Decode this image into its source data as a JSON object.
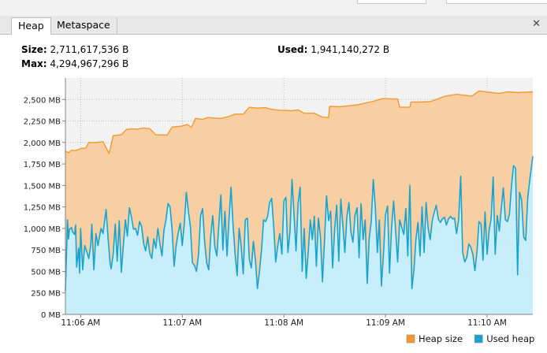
{
  "tabs": [
    {
      "label": "Heap",
      "active": true
    },
    {
      "label": "Metaspace",
      "active": false
    }
  ],
  "stats": {
    "size_label": "Size:",
    "size_value": "2,711,617,536 B",
    "max_label": "Max:",
    "max_value": "4,294,967,296 B",
    "used_label": "Used:",
    "used_value": "1,941,140,272 B"
  },
  "chart_data": {
    "type": "area",
    "y_unit": "MB",
    "ylim": [
      0,
      2750
    ],
    "y_ticks": [
      "0 MB",
      "250 MB",
      "500 MB",
      "750 MB",
      "1,000 MB",
      "1,250 MB",
      "1,500 MB",
      "1,750 MB",
      "2,000 MB",
      "2,250 MB",
      "2,500 MB"
    ],
    "x_ticks": [
      {
        "t": 0.0,
        "label": "11:06 AM"
      },
      {
        "t": 1.0,
        "label": "11:07 AM"
      },
      {
        "t": 2.0,
        "label": "11:08 AM"
      },
      {
        "t": 3.0,
        "label": "11:09 AM"
      },
      {
        "t": 4.0,
        "label": "11:10 AM"
      }
    ],
    "x_range_minutes": [
      -0.15,
      4.45
    ],
    "grid": true,
    "legend_position": "bottom-right",
    "series": [
      {
        "name": "Heap size",
        "color": "#f29a2e",
        "fill": "#f8cfa2",
        "points": [
          [
            -0.15,
            1900
          ],
          [
            -0.12,
            1880
          ],
          [
            -0.09,
            1910
          ],
          [
            -0.05,
            1905
          ],
          [
            0.0,
            1930
          ],
          [
            0.05,
            1935
          ],
          [
            0.08,
            2000
          ],
          [
            0.15,
            2000
          ],
          [
            0.22,
            2010
          ],
          [
            0.28,
            1870
          ],
          [
            0.32,
            2080
          ],
          [
            0.4,
            2090
          ],
          [
            0.45,
            2150
          ],
          [
            0.5,
            2160
          ],
          [
            0.56,
            2155
          ],
          [
            0.62,
            2170
          ],
          [
            0.68,
            2160
          ],
          [
            0.74,
            2090
          ],
          [
            0.85,
            2085
          ],
          [
            0.9,
            2180
          ],
          [
            0.99,
            2190
          ],
          [
            1.05,
            2210
          ],
          [
            1.09,
            2175
          ],
          [
            1.13,
            2280
          ],
          [
            1.2,
            2270
          ],
          [
            1.25,
            2290
          ],
          [
            1.38,
            2280
          ],
          [
            1.45,
            2300
          ],
          [
            1.52,
            2330
          ],
          [
            1.6,
            2330
          ],
          [
            1.66,
            2410
          ],
          [
            1.74,
            2400
          ],
          [
            1.82,
            2405
          ],
          [
            1.86,
            2390
          ],
          [
            1.96,
            2375
          ],
          [
            2.08,
            2370
          ],
          [
            2.14,
            2380
          ],
          [
            2.2,
            2340
          ],
          [
            2.3,
            2340
          ],
          [
            2.38,
            2295
          ],
          [
            2.44,
            2290
          ],
          [
            2.45,
            2420
          ],
          [
            2.55,
            2415
          ],
          [
            2.66,
            2430
          ],
          [
            2.73,
            2440
          ],
          [
            2.88,
            2480
          ],
          [
            2.97,
            2510
          ],
          [
            3.12,
            2505
          ],
          [
            3.14,
            2410
          ],
          [
            3.24,
            2410
          ],
          [
            3.25,
            2470
          ],
          [
            3.33,
            2470
          ],
          [
            3.44,
            2475
          ],
          [
            3.59,
            2540
          ],
          [
            3.7,
            2560
          ],
          [
            3.85,
            2540
          ],
          [
            3.92,
            2600
          ],
          [
            4.05,
            2580
          ],
          [
            4.12,
            2570
          ],
          [
            4.2,
            2590
          ],
          [
            4.3,
            2580
          ],
          [
            4.45,
            2590
          ]
        ]
      },
      {
        "name": "Used heap",
        "color": "#18a3cf",
        "fill": "#c8eefb",
        "points": [
          [
            -0.15,
            270
          ],
          [
            -0.13,
            1100
          ],
          [
            -0.12,
            875
          ],
          [
            -0.11,
            990
          ],
          [
            -0.09,
            1010
          ],
          [
            -0.08,
            960
          ],
          [
            -0.06,
            930
          ],
          [
            -0.05,
            1040
          ],
          [
            -0.04,
            550
          ],
          [
            -0.03,
            660
          ],
          [
            -0.02,
            770
          ],
          [
            -0.01,
            480
          ],
          [
            0.0,
            1000
          ],
          [
            0.02,
            520
          ],
          [
            0.04,
            800
          ],
          [
            0.06,
            730
          ],
          [
            0.08,
            650
          ],
          [
            0.1,
            810
          ],
          [
            0.11,
            1050
          ],
          [
            0.13,
            520
          ],
          [
            0.15,
            940
          ],
          [
            0.17,
            800
          ],
          [
            0.2,
            1000
          ],
          [
            0.22,
            940
          ],
          [
            0.25,
            1220
          ],
          [
            0.27,
            890
          ],
          [
            0.29,
            590
          ],
          [
            0.3,
            530
          ],
          [
            0.32,
            700
          ],
          [
            0.34,
            1050
          ],
          [
            0.36,
            620
          ],
          [
            0.38,
            1090
          ],
          [
            0.4,
            490
          ],
          [
            0.42,
            800
          ],
          [
            0.44,
            1100
          ],
          [
            0.46,
            910
          ],
          [
            0.48,
            1240
          ],
          [
            0.5,
            1130
          ],
          [
            0.52,
            990
          ],
          [
            0.54,
            1000
          ],
          [
            0.56,
            920
          ],
          [
            0.58,
            1080
          ],
          [
            0.6,
            1020
          ],
          [
            0.62,
            820
          ],
          [
            0.64,
            740
          ],
          [
            0.66,
            900
          ],
          [
            0.68,
            710
          ],
          [
            0.7,
            650
          ],
          [
            0.72,
            880
          ],
          [
            0.74,
            770
          ],
          [
            0.76,
            1000
          ],
          [
            0.78,
            820
          ],
          [
            0.8,
            680
          ],
          [
            0.82,
            980
          ],
          [
            0.84,
            1100
          ],
          [
            0.86,
            1290
          ],
          [
            0.88,
            1250
          ],
          [
            0.9,
            980
          ],
          [
            0.92,
            560
          ],
          [
            0.94,
            800
          ],
          [
            0.96,
            950
          ],
          [
            0.98,
            1060
          ],
          [
            1.0,
            800
          ],
          [
            1.02,
            1050
          ],
          [
            1.04,
            1420
          ],
          [
            1.06,
            1200
          ],
          [
            1.08,
            1020
          ],
          [
            1.1,
            600
          ],
          [
            1.12,
            570
          ],
          [
            1.14,
            500
          ],
          [
            1.16,
            700
          ],
          [
            1.18,
            1150
          ],
          [
            1.2,
            1230
          ],
          [
            1.22,
            850
          ],
          [
            1.24,
            600
          ],
          [
            1.26,
            520
          ],
          [
            1.28,
            900
          ],
          [
            1.3,
            1150
          ],
          [
            1.32,
            790
          ],
          [
            1.34,
            680
          ],
          [
            1.36,
            1050
          ],
          [
            1.38,
            1390
          ],
          [
            1.4,
            750
          ],
          [
            1.42,
            1200
          ],
          [
            1.44,
            680
          ],
          [
            1.46,
            1100
          ],
          [
            1.48,
            1480
          ],
          [
            1.5,
            1040
          ],
          [
            1.52,
            700
          ],
          [
            1.54,
            450
          ],
          [
            1.56,
            1000
          ],
          [
            1.58,
            790
          ],
          [
            1.6,
            470
          ],
          [
            1.62,
            1100
          ],
          [
            1.64,
            1120
          ],
          [
            1.66,
            640
          ],
          [
            1.68,
            540
          ],
          [
            1.7,
            850
          ],
          [
            1.72,
            630
          ],
          [
            1.74,
            300
          ],
          [
            1.76,
            500
          ],
          [
            1.78,
            750
          ],
          [
            1.8,
            1100
          ],
          [
            1.82,
            1080
          ],
          [
            1.84,
            1140
          ],
          [
            1.86,
            1300
          ],
          [
            1.88,
            1350
          ],
          [
            1.9,
            1020
          ],
          [
            1.92,
            610
          ],
          [
            1.94,
            800
          ],
          [
            1.96,
            940
          ],
          [
            1.98,
            700
          ],
          [
            2.0,
            1320
          ],
          [
            2.02,
            1360
          ],
          [
            2.04,
            720
          ],
          [
            2.06,
            960
          ],
          [
            2.08,
            1570
          ],
          [
            2.1,
            1150
          ],
          [
            2.12,
            740
          ],
          [
            2.14,
            1290
          ],
          [
            2.16,
            1480
          ],
          [
            2.18,
            500
          ],
          [
            2.2,
            1000
          ],
          [
            2.22,
            420
          ],
          [
            2.24,
            730
          ],
          [
            2.26,
            1100
          ],
          [
            2.28,
            870
          ],
          [
            2.3,
            1140
          ],
          [
            2.32,
            560
          ],
          [
            2.34,
            1120
          ],
          [
            2.36,
            900
          ],
          [
            2.38,
            380
          ],
          [
            2.4,
            850
          ],
          [
            2.42,
            1380
          ],
          [
            2.44,
            1090
          ],
          [
            2.46,
            1200
          ],
          [
            2.48,
            540
          ],
          [
            2.5,
            990
          ],
          [
            2.52,
            1270
          ],
          [
            2.54,
            620
          ],
          [
            2.56,
            1340
          ],
          [
            2.58,
            1050
          ],
          [
            2.6,
            720
          ],
          [
            2.62,
            1140
          ],
          [
            2.64,
            1300
          ],
          [
            2.66,
            960
          ],
          [
            2.68,
            840
          ],
          [
            2.7,
            1150
          ],
          [
            2.72,
            1240
          ],
          [
            2.74,
            660
          ],
          [
            2.76,
            1290
          ],
          [
            2.78,
            870
          ],
          [
            2.8,
            1100
          ],
          [
            2.82,
            360
          ],
          [
            2.84,
            880
          ],
          [
            2.86,
            1080
          ],
          [
            2.88,
            1570
          ],
          [
            2.9,
            1240
          ],
          [
            2.92,
            720
          ],
          [
            2.94,
            1100
          ],
          [
            2.96,
            330
          ],
          [
            2.98,
            700
          ],
          [
            3.0,
            1160
          ],
          [
            3.02,
            1260
          ],
          [
            3.04,
            480
          ],
          [
            3.06,
            1010
          ],
          [
            3.08,
            1320
          ],
          [
            3.1,
            970
          ],
          [
            3.12,
            610
          ],
          [
            3.14,
            1100
          ],
          [
            3.16,
            1010
          ],
          [
            3.18,
            930
          ],
          [
            3.2,
            1230
          ],
          [
            3.22,
            680
          ],
          [
            3.24,
            1500
          ],
          [
            3.26,
            300
          ],
          [
            3.28,
            520
          ],
          [
            3.3,
            880
          ],
          [
            3.32,
            1070
          ],
          [
            3.34,
            680
          ],
          [
            3.36,
            1250
          ],
          [
            3.38,
            720
          ],
          [
            3.4,
            1300
          ],
          [
            3.42,
            1000
          ],
          [
            3.44,
            870
          ],
          [
            3.46,
            1090
          ],
          [
            3.48,
            1190
          ],
          [
            3.5,
            1270
          ],
          [
            3.52,
            1110
          ],
          [
            3.54,
            1070
          ],
          [
            3.56,
            1110
          ],
          [
            3.58,
            1130
          ],
          [
            3.6,
            1040
          ],
          [
            3.62,
            1110
          ],
          [
            3.64,
            1140
          ],
          [
            3.66,
            1110
          ],
          [
            3.68,
            1120
          ],
          [
            3.7,
            940
          ],
          [
            3.72,
            1100
          ],
          [
            3.74,
            1610
          ],
          [
            3.76,
            720
          ],
          [
            3.78,
            610
          ],
          [
            3.8,
            660
          ],
          [
            3.82,
            820
          ],
          [
            3.84,
            780
          ],
          [
            3.86,
            700
          ],
          [
            3.88,
            510
          ],
          [
            3.9,
            720
          ],
          [
            3.92,
            1080
          ],
          [
            3.94,
            1050
          ],
          [
            3.96,
            630
          ],
          [
            3.98,
            1190
          ],
          [
            4.0,
            700
          ],
          [
            4.02,
            980
          ],
          [
            4.04,
            1110
          ],
          [
            4.06,
            1600
          ],
          [
            4.08,
            700
          ],
          [
            4.1,
            1150
          ],
          [
            4.12,
            970
          ],
          [
            4.14,
            1230
          ],
          [
            4.16,
            1470
          ],
          [
            4.18,
            1100
          ],
          [
            4.2,
            1080
          ],
          [
            4.22,
            1170
          ],
          [
            4.24,
            1490
          ],
          [
            4.26,
            1730
          ],
          [
            4.28,
            1700
          ],
          [
            4.3,
            460
          ],
          [
            4.32,
            1420
          ],
          [
            4.34,
            1330
          ],
          [
            4.36,
            900
          ],
          [
            4.38,
            860
          ],
          [
            4.4,
            1360
          ],
          [
            4.42,
            1560
          ],
          [
            4.45,
            1840
          ]
        ]
      }
    ]
  }
}
